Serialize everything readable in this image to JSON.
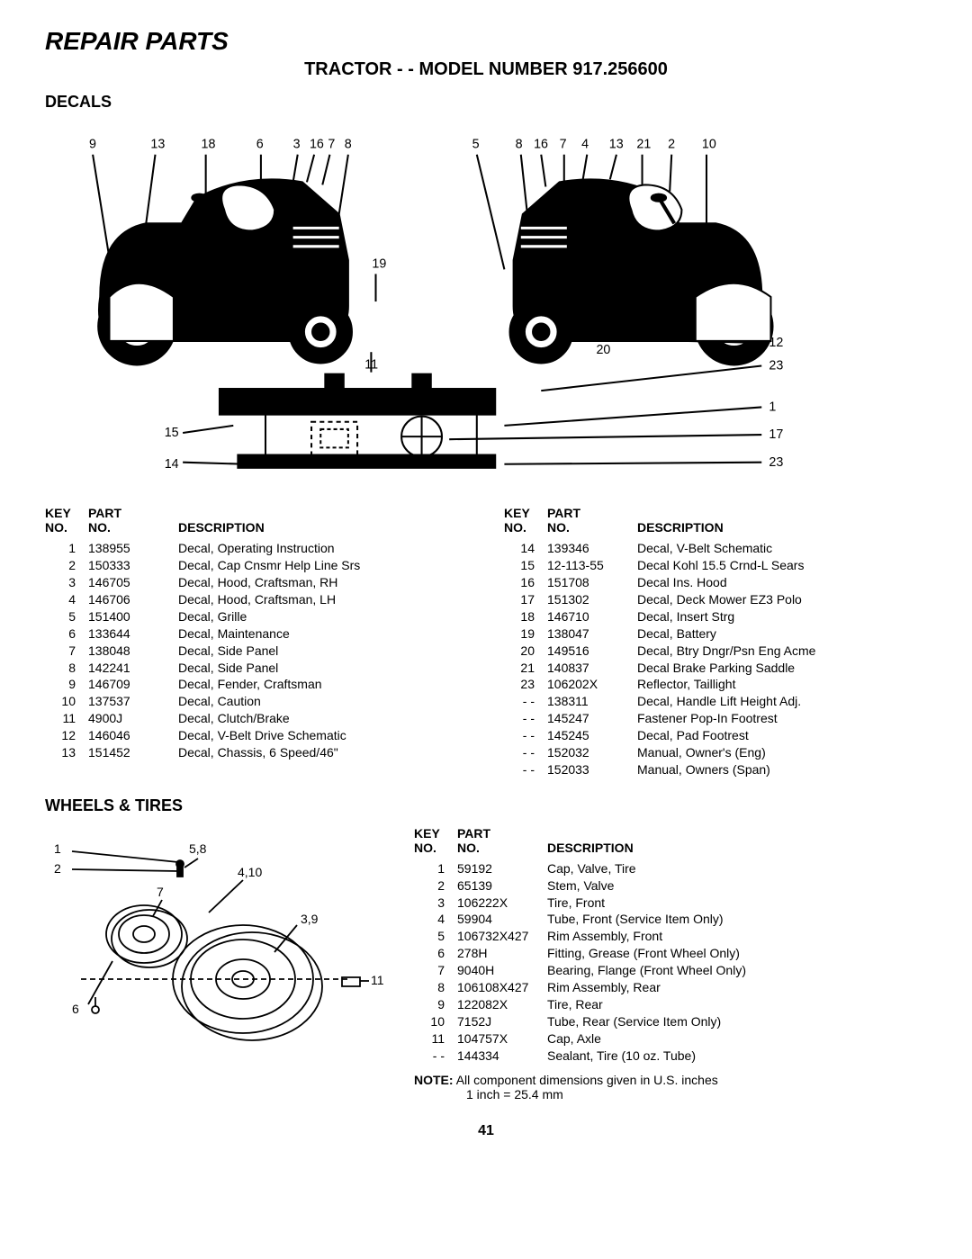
{
  "title": "REPAIR PARTS",
  "model_line": "TRACTOR - - MODEL NUMBER 917.256600",
  "section_decals": "DECALS",
  "section_wheels": "WHEELS & TIRES",
  "headers": {
    "key": "KEY NO.",
    "part": "PART NO.",
    "desc": "DESCRIPTION"
  },
  "decals_left": [
    {
      "key": "1",
      "part": "138955",
      "desc": "Decal, Operating Instruction"
    },
    {
      "key": "2",
      "part": "150333",
      "desc": "Decal, Cap Cnsmr Help Line Srs"
    },
    {
      "key": "3",
      "part": "146705",
      "desc": "Decal, Hood, Craftsman, RH"
    },
    {
      "key": "4",
      "part": "146706",
      "desc": "Decal, Hood, Craftsman, LH"
    },
    {
      "key": "5",
      "part": "151400",
      "desc": "Decal, Grille"
    },
    {
      "key": "6",
      "part": "133644",
      "desc": "Decal, Maintenance"
    },
    {
      "key": "7",
      "part": "138048",
      "desc": "Decal, Side Panel"
    },
    {
      "key": "8",
      "part": "142241",
      "desc": "Decal, Side Panel"
    },
    {
      "key": "9",
      "part": "146709",
      "desc": "Decal, Fender, Craftsman"
    },
    {
      "key": "10",
      "part": "137537",
      "desc": "Decal, Caution"
    },
    {
      "key": "11",
      "part": "4900J",
      "desc": "Decal, Clutch/Brake"
    },
    {
      "key": "12",
      "part": "146046",
      "desc": "Decal, V-Belt Drive Schematic"
    },
    {
      "key": "13",
      "part": "151452",
      "desc": "Decal, Chassis, 6 Speed/46\""
    }
  ],
  "decals_right": [
    {
      "key": "14",
      "part": "139346",
      "desc": "Decal, V-Belt Schematic"
    },
    {
      "key": "15",
      "part": "12-113-55",
      "desc": "Decal Kohl 15.5 Crnd-L Sears"
    },
    {
      "key": "16",
      "part": "151708",
      "desc": "Decal Ins. Hood"
    },
    {
      "key": "17",
      "part": "151302",
      "desc": "Decal, Deck Mower EZ3 Polo"
    },
    {
      "key": "18",
      "part": "146710",
      "desc": "Decal, Insert Strg"
    },
    {
      "key": "19",
      "part": "138047",
      "desc": "Decal, Battery"
    },
    {
      "key": "20",
      "part": "149516",
      "desc": "Decal, Btry Dngr/Psn Eng Acme"
    },
    {
      "key": "21",
      "part": "140837",
      "desc": "Decal Brake Parking Saddle"
    },
    {
      "key": "23",
      "part": "106202X",
      "desc": "Reflector, Taillight"
    },
    {
      "key": "- -",
      "part": "138311",
      "desc": "Decal, Handle Lift Height Adj."
    },
    {
      "key": "- -",
      "part": "145247",
      "desc": "Fastener Pop-In Footrest"
    },
    {
      "key": "- -",
      "part": "145245",
      "desc": "Decal, Pad Footrest"
    },
    {
      "key": "- -",
      "part": "152032",
      "desc": "Manual, Owner's (Eng)"
    },
    {
      "key": "- -",
      "part": "152033",
      "desc": "Manual, Owners (Span)"
    }
  ],
  "wheels": [
    {
      "key": "1",
      "part": "59192",
      "desc": "Cap, Valve, Tire"
    },
    {
      "key": "2",
      "part": "65139",
      "desc": "Stem, Valve"
    },
    {
      "key": "3",
      "part": "106222X",
      "desc": "Tire, Front"
    },
    {
      "key": "4",
      "part": "59904",
      "desc": "Tube, Front (Service Item Only)"
    },
    {
      "key": "5",
      "part": "106732X427",
      "desc": "Rim Assembly, Front"
    },
    {
      "key": "6",
      "part": "278H",
      "desc": "Fitting, Grease (Front Wheel Only)"
    },
    {
      "key": "7",
      "part": "9040H",
      "desc": "Bearing, Flange (Front Wheel Only)"
    },
    {
      "key": "8",
      "part": "106108X427",
      "desc": "Rim Assembly, Rear"
    },
    {
      "key": "9",
      "part": "122082X",
      "desc": "Tire, Rear"
    },
    {
      "key": "10",
      "part": "7152J",
      "desc": "Tube, Rear (Service Item Only)"
    },
    {
      "key": "11",
      "part": "104757X",
      "desc": "Cap, Axle"
    },
    {
      "key": "- -",
      "part": "144334",
      "desc": "Sealant, Tire (10 oz. Tube)"
    }
  ],
  "note_label": "NOTE:",
  "note_line1": "All component dimensions given in U.S. inches",
  "note_line2": "1 inch = 25.4 mm",
  "page_number": "41",
  "diagram_labels": {
    "tractor_left": [
      "9",
      "13",
      "18",
      "6",
      "3",
      "16",
      "7",
      "8",
      "19",
      "11",
      "15",
      "14"
    ],
    "tractor_right": [
      "5",
      "8",
      "16",
      "7",
      "4",
      "13",
      "21",
      "2",
      "10",
      "20",
      "12",
      "23",
      "1",
      "17",
      "23"
    ],
    "wheels": [
      "1",
      "2",
      "5,8",
      "4,10",
      "7",
      "3,9",
      "6",
      "11"
    ]
  },
  "style": {
    "stroke": "#000000",
    "stroke_width": 2,
    "label_fontsize": 14,
    "label_fontweight": "normal"
  }
}
